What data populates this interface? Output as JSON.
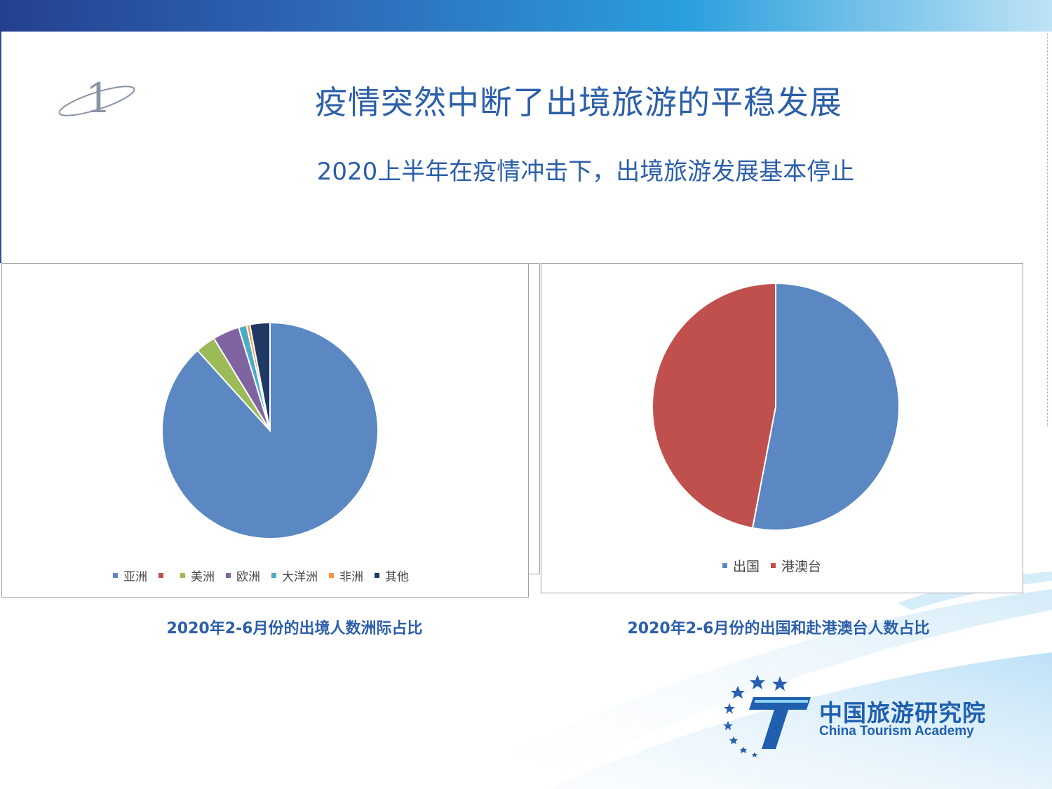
{
  "slide": {
    "number": "1",
    "title": "疫情突然中断了出境旅游的平稳发展",
    "subtitle": "2020上半年在疫情冲击下，出境旅游发展基本停止"
  },
  "chart_data": [
    {
      "type": "pie",
      "title": "",
      "caption": "2020年2-6月份的出境人数洲际占比",
      "series": [
        {
          "label": "亚洲",
          "value": 88.3,
          "color": "#5b87c2"
        },
        {
          "label": "",
          "value": 0.0,
          "color": "#c0504d"
        },
        {
          "label": "美洲",
          "value": 3.0,
          "color": "#9bbb59"
        },
        {
          "label": "欧洲",
          "value": 4.0,
          "color": "#8064a2"
        },
        {
          "label": "大洋洲",
          "value": 1.2,
          "color": "#4bacc6"
        },
        {
          "label": "非洲",
          "value": 0.5,
          "color": "#f79646"
        },
        {
          "label": "其他",
          "value": 3.0,
          "color": "#1f3864"
        }
      ]
    },
    {
      "type": "pie",
      "title": "",
      "caption": "2020年2-6月份的出国和赴港澳台人数占比",
      "series": [
        {
          "label": "出国",
          "value": 53,
          "color": "#5b87c2"
        },
        {
          "label": "港澳台",
          "value": 47,
          "color": "#c0504d"
        }
      ]
    }
  ],
  "logo": {
    "name_cn": "中国旅游研究院",
    "name_en": "China Tourism Academy"
  },
  "colors": {
    "title": "#2c5fa8",
    "band_start": "#23408f",
    "band_end": "#bfe3f6"
  }
}
